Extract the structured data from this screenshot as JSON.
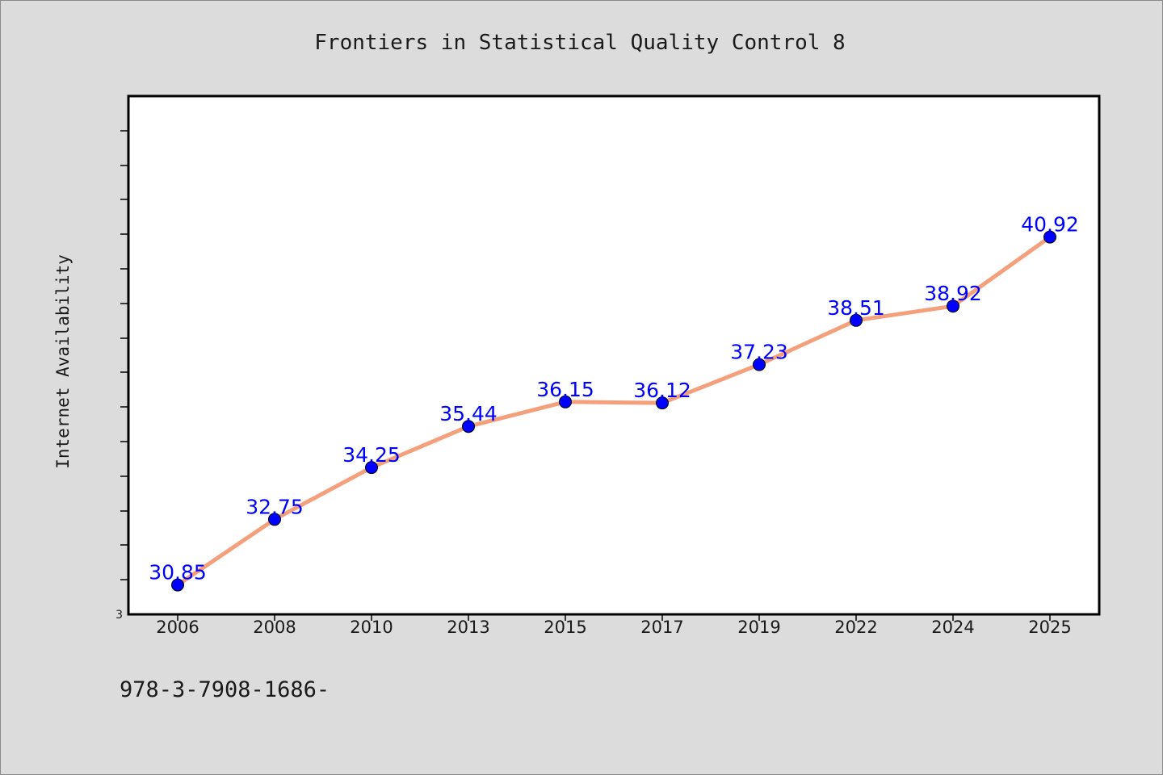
{
  "chart_data": {
    "type": "line",
    "title": "Frontiers in Statistical Quality Control 8",
    "ylabel": "Internet Availability",
    "xlabel": "",
    "categories": [
      "2006",
      "2008",
      "2010",
      "2013",
      "2015",
      "2017",
      "2019",
      "2022",
      "2024",
      "2025"
    ],
    "values": [
      30.85,
      32.75,
      34.25,
      35.44,
      36.15,
      36.12,
      37.23,
      38.51,
      38.92,
      40.92
    ],
    "data_labels": [
      "30.85",
      "32.75",
      "34.25",
      "35.44",
      "36.15",
      "36.12",
      "37.23",
      "38.51",
      "38.92",
      "40.92"
    ],
    "y_tick_labels": [
      "3"
    ],
    "ylim": [
      30.0,
      45.0
    ],
    "grid": false,
    "legend": "none",
    "colors": {
      "line": "#f4a07c",
      "marker": "#0000ff",
      "label": "#0000ff"
    }
  },
  "footer": {
    "isbn": "978-3-7908-1686-"
  }
}
